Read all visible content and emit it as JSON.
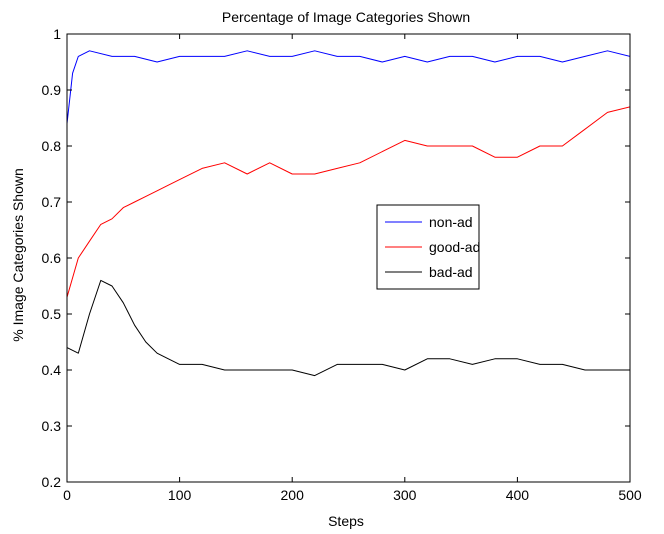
{
  "chart_data": {
    "type": "line",
    "title": "Percentage of Image Categories Shown",
    "xlabel": "Steps",
    "ylabel": "% Image Categories Shown",
    "xlim": [
      0,
      500
    ],
    "ylim": [
      0.2,
      1
    ],
    "xticks": [
      0,
      100,
      200,
      300,
      400,
      500
    ],
    "yticks": [
      0.2,
      0.3,
      0.4,
      0.5,
      0.6,
      0.7,
      0.8,
      0.9,
      1
    ],
    "ytick_labels": [
      "0.2",
      "0.3",
      "0.4",
      "0.5",
      "0.6",
      "0.7",
      "0.8",
      "0.9",
      "1"
    ],
    "grid": false,
    "legend_position": "center-right",
    "series": [
      {
        "name": "non-ad",
        "color": "#0000ff",
        "x": [
          0,
          5,
          10,
          20,
          40,
          60,
          80,
          100,
          120,
          140,
          160,
          180,
          200,
          220,
          240,
          260,
          280,
          300,
          320,
          340,
          360,
          380,
          400,
          420,
          440,
          460,
          480,
          500
        ],
        "values": [
          0.84,
          0.93,
          0.96,
          0.97,
          0.96,
          0.96,
          0.95,
          0.96,
          0.96,
          0.96,
          0.97,
          0.96,
          0.96,
          0.97,
          0.96,
          0.96,
          0.95,
          0.96,
          0.95,
          0.96,
          0.96,
          0.95,
          0.96,
          0.96,
          0.95,
          0.96,
          0.97,
          0.96
        ]
      },
      {
        "name": "good-ad",
        "color": "#ff0000",
        "x": [
          0,
          10,
          20,
          30,
          40,
          50,
          60,
          70,
          80,
          90,
          100,
          120,
          140,
          160,
          180,
          200,
          220,
          240,
          260,
          280,
          300,
          320,
          340,
          360,
          380,
          400,
          420,
          440,
          460,
          480,
          500
        ],
        "values": [
          0.53,
          0.6,
          0.63,
          0.66,
          0.67,
          0.69,
          0.7,
          0.71,
          0.72,
          0.73,
          0.74,
          0.76,
          0.77,
          0.75,
          0.77,
          0.75,
          0.75,
          0.76,
          0.77,
          0.79,
          0.81,
          0.8,
          0.8,
          0.8,
          0.78,
          0.78,
          0.8,
          0.8,
          0.83,
          0.86,
          0.87
        ]
      },
      {
        "name": "bad-ad",
        "color": "#000000",
        "x": [
          0,
          10,
          20,
          30,
          40,
          50,
          60,
          70,
          80,
          90,
          100,
          120,
          140,
          160,
          180,
          200,
          220,
          240,
          260,
          280,
          300,
          320,
          340,
          360,
          380,
          400,
          420,
          440,
          460,
          480,
          500
        ],
        "values": [
          0.44,
          0.43,
          0.5,
          0.56,
          0.55,
          0.52,
          0.48,
          0.45,
          0.43,
          0.42,
          0.41,
          0.41,
          0.4,
          0.4,
          0.4,
          0.4,
          0.39,
          0.41,
          0.41,
          0.41,
          0.4,
          0.42,
          0.42,
          0.41,
          0.42,
          0.42,
          0.41,
          0.41,
          0.4,
          0.4,
          0.4
        ]
      }
    ]
  }
}
